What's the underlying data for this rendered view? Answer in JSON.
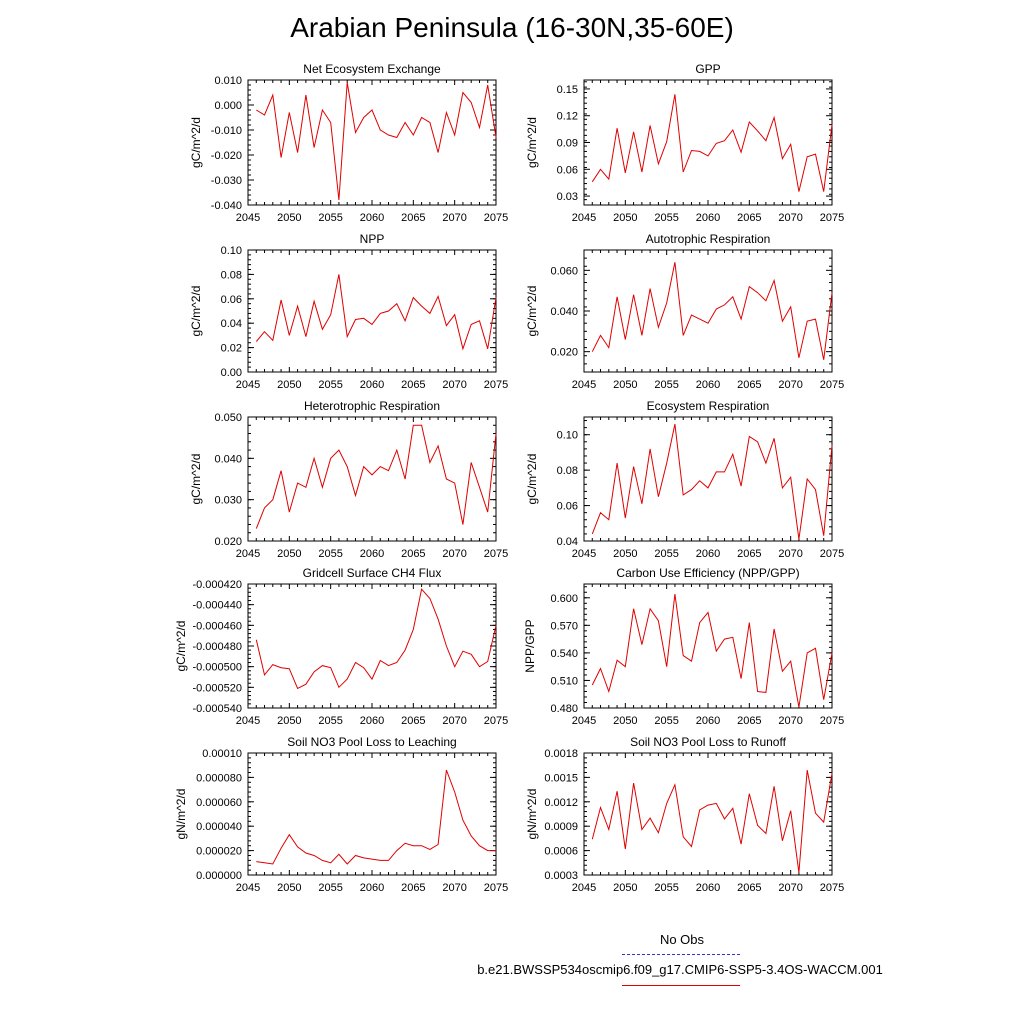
{
  "title": "Arabian Peninsula (16-30N,35-60E)",
  "legend": {
    "obs_label": "No Obs",
    "case_label": "b.e21.BWSSP534oscmip6.f09_g17.CMIP6-SSP5-3.4OS-WACCM.001",
    "obs_color": "#3333cc",
    "case_color": "#e00000"
  },
  "chart_data": [
    {
      "type": "line",
      "title": "Net Ecosystem Exchange",
      "ylabel": "gC/m^2/d",
      "xlim": [
        2045,
        2075
      ],
      "ylim": [
        -0.04,
        0.01
      ],
      "xticks": [
        "2045",
        "2050",
        "2055",
        "2060",
        "2065",
        "2070",
        "2075"
      ],
      "yticks": [
        "-0.040",
        "-0.030",
        "-0.020",
        "-0.010",
        "0.000",
        "0.010"
      ],
      "yticks_values": [
        -0.04,
        -0.03,
        -0.02,
        -0.01,
        0.0,
        0.01
      ],
      "x": [
        2046,
        2047,
        2048,
        2049,
        2050,
        2051,
        2052,
        2053,
        2054,
        2055,
        2056,
        2057,
        2058,
        2059,
        2060,
        2061,
        2062,
        2063,
        2064,
        2065,
        2066,
        2067,
        2068,
        2069,
        2070,
        2071,
        2072,
        2073,
        2074,
        2075
      ],
      "series": [
        {
          "values": [
            -0.002,
            -0.004,
            0.004,
            -0.021,
            -0.003,
            -0.019,
            0.004,
            -0.017,
            -0.002,
            -0.007,
            -0.038,
            0.009,
            -0.011,
            -0.005,
            -0.002,
            -0.01,
            -0.012,
            -0.013,
            -0.007,
            -0.012,
            -0.005,
            -0.007,
            -0.019,
            -0.003,
            -0.012,
            0.005,
            0.001,
            -0.009,
            0.008,
            -0.013
          ],
          "color": "#e00000"
        }
      ]
    },
    {
      "type": "line",
      "title": "GPP",
      "ylabel": "gC/m^2/d",
      "xlim": [
        2045,
        2075
      ],
      "ylim": [
        0.02,
        0.16
      ],
      "xticks": [
        "2045",
        "2050",
        "2055",
        "2060",
        "2065",
        "2070",
        "2075"
      ],
      "yticks": [
        "0.03",
        "0.06",
        "0.09",
        "0.12",
        "0.15"
      ],
      "yticks_values": [
        0.03,
        0.06,
        0.09,
        0.12,
        0.15
      ],
      "x": [
        2046,
        2047,
        2048,
        2049,
        2050,
        2051,
        2052,
        2053,
        2054,
        2055,
        2056,
        2057,
        2058,
        2059,
        2060,
        2061,
        2062,
        2063,
        2064,
        2065,
        2066,
        2067,
        2068,
        2069,
        2070,
        2071,
        2072,
        2073,
        2074,
        2075
      ],
      "series": [
        {
          "values": [
            0.046,
            0.06,
            0.049,
            0.106,
            0.056,
            0.102,
            0.057,
            0.109,
            0.066,
            0.091,
            0.144,
            0.057,
            0.081,
            0.08,
            0.075,
            0.089,
            0.092,
            0.104,
            0.079,
            0.113,
            0.103,
            0.092,
            0.118,
            0.072,
            0.088,
            0.035,
            0.074,
            0.077,
            0.035,
            0.11
          ],
          "color": "#e00000"
        }
      ]
    },
    {
      "type": "line",
      "title": "NPP",
      "ylabel": "gC/m^2/d",
      "xlim": [
        2045,
        2075
      ],
      "ylim": [
        0.0,
        0.1
      ],
      "xticks": [
        "2045",
        "2050",
        "2055",
        "2060",
        "2065",
        "2070",
        "2075"
      ],
      "yticks": [
        "0.00",
        "0.02",
        "0.04",
        "0.06",
        "0.08",
        "0.10"
      ],
      "yticks_values": [
        0.0,
        0.02,
        0.04,
        0.06,
        0.08,
        0.1
      ],
      "x": [
        2046,
        2047,
        2048,
        2049,
        2050,
        2051,
        2052,
        2053,
        2054,
        2055,
        2056,
        2057,
        2058,
        2059,
        2060,
        2061,
        2062,
        2063,
        2064,
        2065,
        2066,
        2067,
        2068,
        2069,
        2070,
        2071,
        2072,
        2073,
        2074,
        2075
      ],
      "series": [
        {
          "values": [
            0.025,
            0.033,
            0.026,
            0.059,
            0.03,
            0.054,
            0.029,
            0.058,
            0.035,
            0.047,
            0.08,
            0.029,
            0.043,
            0.044,
            0.039,
            0.048,
            0.05,
            0.056,
            0.042,
            0.061,
            0.054,
            0.048,
            0.062,
            0.038,
            0.047,
            0.019,
            0.039,
            0.042,
            0.019,
            0.061
          ],
          "color": "#e00000"
        }
      ]
    },
    {
      "type": "line",
      "title": "Autotrophic Respiration",
      "ylabel": "gC/m^2/d",
      "xlim": [
        2045,
        2075
      ],
      "ylim": [
        0.01,
        0.07
      ],
      "xticks": [
        "2045",
        "2050",
        "2055",
        "2060",
        "2065",
        "2070",
        "2075"
      ],
      "yticks": [
        "0.020",
        "0.040",
        "0.060"
      ],
      "yticks_values": [
        0.02,
        0.04,
        0.06
      ],
      "x": [
        2046,
        2047,
        2048,
        2049,
        2050,
        2051,
        2052,
        2053,
        2054,
        2055,
        2056,
        2057,
        2058,
        2059,
        2060,
        2061,
        2062,
        2063,
        2064,
        2065,
        2066,
        2067,
        2068,
        2069,
        2070,
        2071,
        2072,
        2073,
        2074,
        2075
      ],
      "series": [
        {
          "values": [
            0.02,
            0.028,
            0.022,
            0.047,
            0.026,
            0.048,
            0.028,
            0.051,
            0.032,
            0.044,
            0.064,
            0.028,
            0.038,
            0.036,
            0.034,
            0.041,
            0.043,
            0.047,
            0.036,
            0.052,
            0.049,
            0.045,
            0.055,
            0.035,
            0.042,
            0.017,
            0.035,
            0.036,
            0.016,
            0.049
          ],
          "color": "#e00000"
        }
      ]
    },
    {
      "type": "line",
      "title": "Heterotrophic Respiration",
      "ylabel": "gC/m^2/d",
      "xlim": [
        2045,
        2075
      ],
      "ylim": [
        0.02,
        0.05
      ],
      "xticks": [
        "2045",
        "2050",
        "2055",
        "2060",
        "2065",
        "2070",
        "2075"
      ],
      "yticks": [
        "0.020",
        "0.030",
        "0.040",
        "0.050"
      ],
      "yticks_values": [
        0.02,
        0.03,
        0.04,
        0.05
      ],
      "x": [
        2046,
        2047,
        2048,
        2049,
        2050,
        2051,
        2052,
        2053,
        2054,
        2055,
        2056,
        2057,
        2058,
        2059,
        2060,
        2061,
        2062,
        2063,
        2064,
        2065,
        2066,
        2067,
        2068,
        2069,
        2070,
        2071,
        2072,
        2073,
        2074,
        2075
      ],
      "series": [
        {
          "values": [
            0.023,
            0.028,
            0.03,
            0.037,
            0.027,
            0.034,
            0.033,
            0.04,
            0.033,
            0.04,
            0.042,
            0.038,
            0.031,
            0.038,
            0.036,
            0.038,
            0.037,
            0.042,
            0.035,
            0.048,
            0.048,
            0.039,
            0.043,
            0.035,
            0.034,
            0.024,
            0.039,
            0.033,
            0.027,
            0.046
          ],
          "color": "#e00000"
        }
      ]
    },
    {
      "type": "line",
      "title": "Ecosystem Respiration",
      "ylabel": "gC/m^2/d",
      "xlim": [
        2045,
        2075
      ],
      "ylim": [
        0.04,
        0.11
      ],
      "xticks": [
        "2045",
        "2050",
        "2055",
        "2060",
        "2065",
        "2070",
        "2075"
      ],
      "yticks": [
        "0.04",
        "0.06",
        "0.08",
        "0.10"
      ],
      "yticks_values": [
        0.04,
        0.06,
        0.08,
        0.1
      ],
      "x": [
        2046,
        2047,
        2048,
        2049,
        2050,
        2051,
        2052,
        2053,
        2054,
        2055,
        2056,
        2057,
        2058,
        2059,
        2060,
        2061,
        2062,
        2063,
        2064,
        2065,
        2066,
        2067,
        2068,
        2069,
        2070,
        2071,
        2072,
        2073,
        2074,
        2075
      ],
      "series": [
        {
          "values": [
            0.044,
            0.056,
            0.052,
            0.084,
            0.053,
            0.082,
            0.061,
            0.092,
            0.065,
            0.084,
            0.106,
            0.066,
            0.069,
            0.074,
            0.07,
            0.079,
            0.079,
            0.089,
            0.071,
            0.099,
            0.096,
            0.084,
            0.098,
            0.07,
            0.076,
            0.041,
            0.075,
            0.069,
            0.043,
            0.094
          ],
          "color": "#e00000"
        }
      ]
    },
    {
      "type": "line",
      "title": "Gridcell Surface CH4 Flux",
      "ylabel": "gC/m^2/d",
      "xlim": [
        2045,
        2075
      ],
      "ylim": [
        -0.00054,
        -0.00042
      ],
      "xticks": [
        "2045",
        "2050",
        "2055",
        "2060",
        "2065",
        "2070",
        "2075"
      ],
      "yticks": [
        "-0.000540",
        "-0.000520",
        "-0.000500",
        "-0.000480",
        "-0.000460",
        "-0.000440",
        "-0.000420"
      ],
      "yticks_values": [
        -0.00054,
        -0.00052,
        -0.0005,
        -0.00048,
        -0.00046,
        -0.00044,
        -0.00042
      ],
      "x": [
        2046,
        2047,
        2048,
        2049,
        2050,
        2051,
        2052,
        2053,
        2054,
        2055,
        2056,
        2057,
        2058,
        2059,
        2060,
        2061,
        2062,
        2063,
        2064,
        2065,
        2066,
        2067,
        2068,
        2069,
        2070,
        2071,
        2072,
        2073,
        2074,
        2075
      ],
      "series": [
        {
          "values": [
            -0.000474,
            -0.000508,
            -0.000498,
            -0.000501,
            -0.000502,
            -0.000521,
            -0.000517,
            -0.000505,
            -0.000499,
            -0.000501,
            -0.00052,
            -0.000512,
            -0.000496,
            -0.000501,
            -0.000512,
            -0.000494,
            -0.000499,
            -0.000496,
            -0.000484,
            -0.000464,
            -0.000425,
            -0.000434,
            -0.000454,
            -0.00048,
            -0.0005,
            -0.000485,
            -0.000488,
            -0.0005,
            -0.000495,
            -0.00046
          ],
          "color": "#e00000"
        }
      ]
    },
    {
      "type": "line",
      "title": "Carbon Use Efficiency (NPP/GPP)",
      "ylabel": "NPP/GPP",
      "xlim": [
        2045,
        2075
      ],
      "ylim": [
        0.48,
        0.615
      ],
      "xticks": [
        "2045",
        "2050",
        "2055",
        "2060",
        "2065",
        "2070",
        "2075"
      ],
      "yticks": [
        "0.480",
        "0.510",
        "0.540",
        "0.570",
        "0.600"
      ],
      "yticks_values": [
        0.48,
        0.51,
        0.54,
        0.57,
        0.6
      ],
      "x": [
        2046,
        2047,
        2048,
        2049,
        2050,
        2051,
        2052,
        2053,
        2054,
        2055,
        2056,
        2057,
        2058,
        2059,
        2060,
        2061,
        2062,
        2063,
        2064,
        2065,
        2066,
        2067,
        2068,
        2069,
        2070,
        2071,
        2072,
        2073,
        2074,
        2075
      ],
      "series": [
        {
          "values": [
            0.505,
            0.523,
            0.498,
            0.532,
            0.525,
            0.588,
            0.549,
            0.588,
            0.575,
            0.525,
            0.604,
            0.537,
            0.531,
            0.573,
            0.584,
            0.542,
            0.555,
            0.557,
            0.512,
            0.573,
            0.498,
            0.497,
            0.566,
            0.52,
            0.531,
            0.481,
            0.54,
            0.545,
            0.489,
            0.54
          ],
          "color": "#e00000"
        }
      ]
    },
    {
      "type": "line",
      "title": "Soil NO3 Pool Loss to Leaching",
      "ylabel": "gN/m^2/d",
      "xlim": [
        2045,
        2075
      ],
      "ylim": [
        0.0,
        0.0001
      ],
      "xticks": [
        "2045",
        "2050",
        "2055",
        "2060",
        "2065",
        "2070",
        "2075"
      ],
      "yticks": [
        "0.000000",
        "0.000020",
        "0.000040",
        "0.000060",
        "0.000080",
        "0.00010"
      ],
      "yticks_values": [
        0.0,
        2e-05,
        4e-05,
        6e-05,
        8e-05,
        0.0001
      ],
      "x": [
        2046,
        2047,
        2048,
        2049,
        2050,
        2051,
        2052,
        2053,
        2054,
        2055,
        2056,
        2057,
        2058,
        2059,
        2060,
        2061,
        2062,
        2063,
        2064,
        2065,
        2066,
        2067,
        2068,
        2069,
        2070,
        2071,
        2072,
        2073,
        2074,
        2075
      ],
      "series": [
        {
          "values": [
            1.1e-05,
            1e-05,
            9e-06,
            2.2e-05,
            3.3e-05,
            2.3e-05,
            1.8e-05,
            1.6e-05,
            1.2e-05,
            1e-05,
            1.7e-05,
            9e-06,
            1.6e-05,
            1.4e-05,
            1.3e-05,
            1.2e-05,
            1.2e-05,
            2e-05,
            2.6e-05,
            2.4e-05,
            2.4e-05,
            2.1e-05,
            2.5e-05,
            8.6e-05,
            6.8e-05,
            4.5e-05,
            3.2e-05,
            2.4e-05,
            2e-05,
            2e-05
          ],
          "color": "#e00000"
        }
      ]
    },
    {
      "type": "line",
      "title": "Soil NO3 Pool Loss to Runoff",
      "ylabel": "gN/m^2/d",
      "xlim": [
        2045,
        2075
      ],
      "ylim": [
        0.0003,
        0.0018
      ],
      "xticks": [
        "2045",
        "2050",
        "2055",
        "2060",
        "2065",
        "2070",
        "2075"
      ],
      "yticks": [
        "0.0003",
        "0.0006",
        "0.0009",
        "0.0012",
        "0.0015",
        "0.0018"
      ],
      "yticks_values": [
        0.0003,
        0.0006,
        0.0009,
        0.0012,
        0.0015,
        0.0018
      ],
      "x": [
        2046,
        2047,
        2048,
        2049,
        2050,
        2051,
        2052,
        2053,
        2054,
        2055,
        2056,
        2057,
        2058,
        2059,
        2060,
        2061,
        2062,
        2063,
        2064,
        2065,
        2066,
        2067,
        2068,
        2069,
        2070,
        2071,
        2072,
        2073,
        2074,
        2075
      ],
      "series": [
        {
          "values": [
            0.00074,
            0.00113,
            0.00086,
            0.00133,
            0.00062,
            0.00143,
            0.00086,
            0.001,
            0.00082,
            0.00118,
            0.00141,
            0.00077,
            0.00065,
            0.0011,
            0.00116,
            0.00118,
            0.00099,
            0.00112,
            0.00068,
            0.0013,
            0.00091,
            0.00081,
            0.00139,
            0.00072,
            0.00109,
            0.00033,
            0.00159,
            0.00106,
            0.00095,
            0.00155
          ],
          "color": "#e00000"
        }
      ]
    }
  ]
}
